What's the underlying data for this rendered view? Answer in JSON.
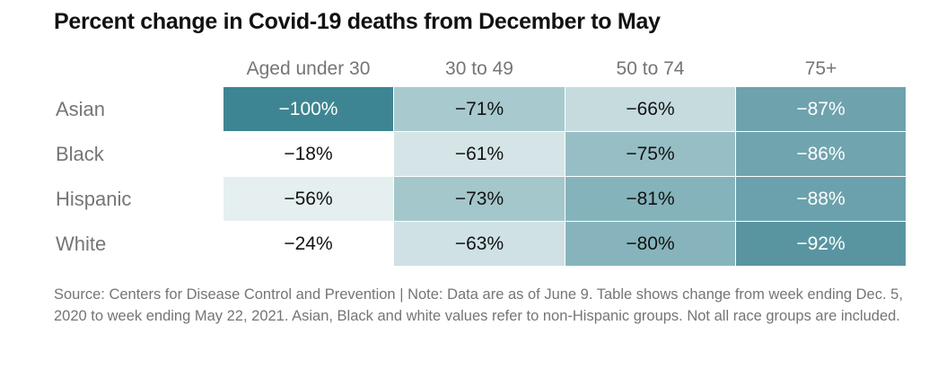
{
  "title": "Percent change in Covid-19 deaths from December to May",
  "note": "Source: Centers for Disease Control and Prevention | Note: Data are as of June 9. Table shows change from week ending Dec. 5, 2020 to week ending May 22, 2021. Asian, Black and white values refer to non-Hispanic groups. Not all race groups are included.",
  "chart_data": {
    "type": "table",
    "title": "Percent change in Covid-19 deaths from December to May",
    "columns": [
      "Aged under 30",
      "30 to 49",
      "50 to 74",
      "75+"
    ],
    "rows": [
      "Asian",
      "Black",
      "Hispanic",
      "White"
    ],
    "values": [
      [
        -100,
        -71,
        -66,
        -87
      ],
      [
        -18,
        -61,
        -75,
        -86
      ],
      [
        -56,
        -73,
        -81,
        -88
      ],
      [
        -24,
        -63,
        -80,
        -92
      ]
    ],
    "labels": [
      [
        "−100%",
        "−71%",
        "−66%",
        "−87%"
      ],
      [
        "−18%",
        "−61%",
        "−75%",
        "−86%"
      ],
      [
        "−56%",
        "−73%",
        "−81%",
        "−88%"
      ],
      [
        "−24%",
        "−63%",
        "−80%",
        "−92%"
      ]
    ],
    "colors": [
      [
        "#3e8593",
        "#a8cacf",
        "#c6dbde",
        "#6ea2ad"
      ],
      [
        "#ffffff",
        "#d5e5e7",
        "#97bec5",
        "#70a4ae"
      ],
      [
        "#e5eff0",
        "#a4c7cc",
        "#85b3bb",
        "#6ba1ac"
      ],
      [
        "#ffffff",
        "#cfe1e4",
        "#87b4bc",
        "#5995a1"
      ]
    ],
    "text_colors": [
      [
        "#ffffff",
        "#121212",
        "#121212",
        "#ffffff"
      ],
      [
        "#121212",
        "#121212",
        "#121212",
        "#ffffff"
      ],
      [
        "#121212",
        "#121212",
        "#121212",
        "#ffffff"
      ],
      [
        "#121212",
        "#121212",
        "#121212",
        "#ffffff"
      ]
    ]
  }
}
